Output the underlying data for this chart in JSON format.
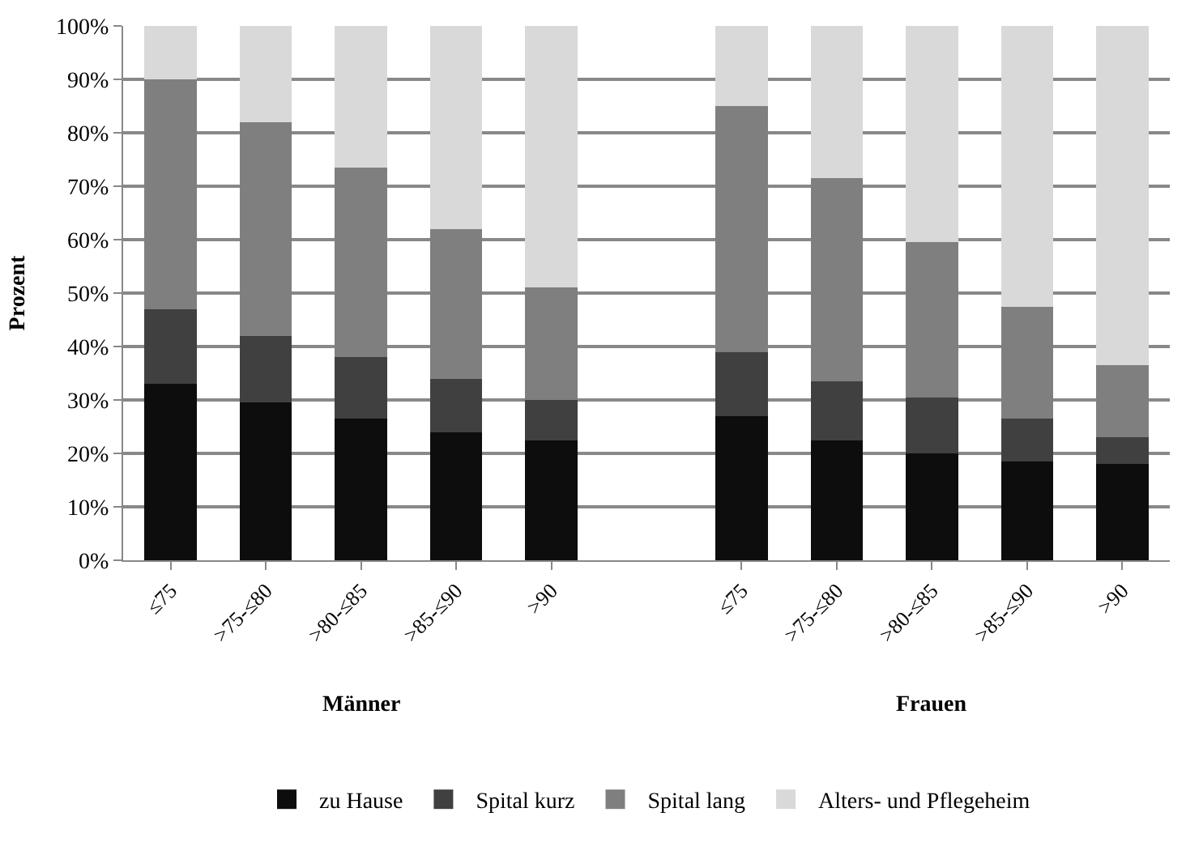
{
  "chart_data": {
    "type": "bar",
    "stacked": true,
    "ylabel": "Prozent",
    "categories": [
      "≤75",
      ">75-≤80",
      ">80-≤85",
      ">85-≤90",
      ">90",
      null,
      "≤75",
      ">75-≤80",
      ">80-≤85",
      ">85-≤90",
      ">90"
    ],
    "series": [
      {
        "name": "zu Hause",
        "color": "#0d0d0d",
        "values": [
          33,
          29.5,
          26.5,
          24,
          22.5,
          null,
          27,
          22.5,
          20,
          18.5,
          18
        ]
      },
      {
        "name": "Spital kurz",
        "color": "#404040",
        "values": [
          14,
          12.5,
          11.5,
          10,
          7.5,
          null,
          12,
          11,
          10.5,
          8,
          5
        ]
      },
      {
        "name": "Spital lang",
        "color": "#7f7f7f",
        "values": [
          43,
          40,
          35.5,
          28,
          21,
          null,
          46,
          38,
          29,
          21,
          13.5
        ]
      },
      {
        "name": "Alters- und Pflegeheim",
        "color": "#d9d9d9",
        "values": [
          10,
          18,
          26.5,
          38,
          49,
          null,
          15,
          28.5,
          40.5,
          52.5,
          63.5
        ]
      }
    ],
    "ylim": [
      0,
      100
    ],
    "yticks": [
      {
        "value": 0,
        "label": "0%"
      },
      {
        "value": 10,
        "label": "10%"
      },
      {
        "value": 20,
        "label": "20%"
      },
      {
        "value": 30,
        "label": "30%"
      },
      {
        "value": 40,
        "label": "40%"
      },
      {
        "value": 50,
        "label": "50%"
      },
      {
        "value": 60,
        "label": "60%"
      },
      {
        "value": 70,
        "label": "70%"
      },
      {
        "value": 80,
        "label": "80%"
      },
      {
        "value": 90,
        "label": "90%"
      },
      {
        "value": 100,
        "label": "100%"
      }
    ],
    "grid": "y",
    "legend": "bottom",
    "annotations": [
      "Männer",
      "Frauen"
    ]
  }
}
